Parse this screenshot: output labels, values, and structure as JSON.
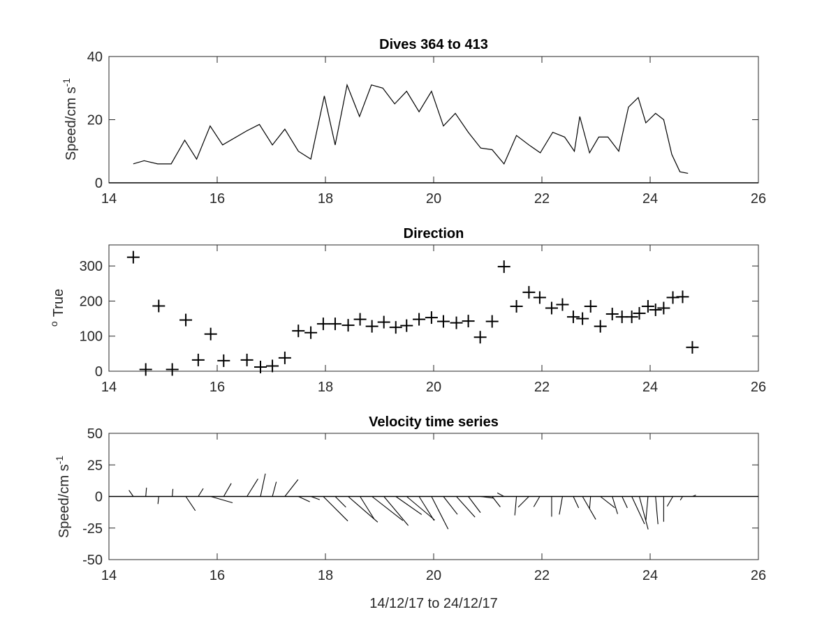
{
  "chart_data": [
    {
      "type": "line",
      "title": "Dives 364 to 413",
      "xlabel": "",
      "ylabel": "Speed/cm s",
      "ylabel_superscript": "-1",
      "xlim": [
        14,
        26
      ],
      "ylim": [
        0,
        40
      ],
      "xticks": [
        14,
        16,
        18,
        20,
        22,
        24,
        26
      ],
      "yticks": [
        0,
        20,
        40
      ],
      "grid": false,
      "series": [
        {
          "x": [
            14.45,
            14.65,
            14.9,
            15.15,
            15.4,
            15.62,
            15.87,
            16.1,
            16.55,
            16.78,
            17.02,
            17.25,
            17.5,
            17.73,
            17.98,
            18.18,
            18.4,
            18.63,
            18.85,
            19.06,
            19.28,
            19.5,
            19.73,
            19.96,
            20.18,
            20.4,
            20.64,
            20.87,
            21.08,
            21.3,
            21.53,
            21.76,
            21.97,
            22.2,
            22.42,
            22.6,
            22.7,
            22.88,
            23.05,
            23.22,
            23.42,
            23.6,
            23.78,
            23.92,
            24.1,
            24.25,
            24.4,
            24.55,
            24.7
          ],
          "y": [
            6,
            7,
            6,
            6,
            13.5,
            7.5,
            18,
            12,
            16.5,
            18.5,
            12,
            17,
            10,
            7.5,
            27.5,
            12,
            31,
            21,
            31,
            30,
            25,
            29,
            22.5,
            29,
            18,
            22,
            16,
            11,
            10.5,
            6,
            15,
            12,
            9.5,
            16,
            14.5,
            10,
            21,
            9.5,
            14.5,
            14.5,
            10,
            24,
            27,
            19,
            22,
            20,
            9,
            3.5,
            3
          ]
        }
      ]
    },
    {
      "type": "scatter",
      "title": "Direction",
      "xlabel": "",
      "ylabel": "True",
      "ylabel_superscript": "o",
      "xlim": [
        14,
        26
      ],
      "ylim": [
        0,
        360
      ],
      "xticks": [
        14,
        16,
        18,
        20,
        22,
        24,
        26
      ],
      "yticks": [
        0,
        100,
        200,
        300
      ],
      "grid": false,
      "marker": "+",
      "series": [
        {
          "x": [
            14.45,
            14.68,
            14.92,
            15.17,
            15.42,
            15.65,
            15.88,
            16.12,
            16.55,
            16.8,
            17.02,
            17.25,
            17.5,
            17.73,
            17.96,
            18.18,
            18.42,
            18.64,
            18.86,
            19.08,
            19.3,
            19.5,
            19.73,
            19.96,
            20.18,
            20.42,
            20.64,
            20.86,
            21.08,
            21.3,
            21.53,
            21.76,
            21.96,
            22.18,
            22.38,
            22.58,
            22.75,
            22.9,
            23.08,
            23.3,
            23.48,
            23.66,
            23.8,
            23.96,
            24.1,
            24.25,
            24.42,
            24.6,
            24.78
          ],
          "y": [
            325,
            5,
            186,
            5,
            146,
            32,
            106,
            30,
            32,
            12,
            15,
            38,
            115,
            110,
            135,
            135,
            131,
            148,
            128,
            140,
            125,
            130,
            148,
            153,
            142,
            138,
            143,
            97,
            142,
            298,
            185,
            225,
            210,
            180,
            190,
            155,
            150,
            185,
            128,
            163,
            155,
            155,
            165,
            185,
            175,
            180,
            210,
            212,
            68
          ]
        }
      ]
    },
    {
      "type": "line",
      "subtype": "stick-plot",
      "title": "Velocity time series",
      "xlabel": "14/12/17 to 24/12/17",
      "ylabel": "Speed/cm s",
      "ylabel_superscript": "-1",
      "xlim": [
        14,
        26
      ],
      "ylim": [
        -50,
        50
      ],
      "xticks": [
        14,
        16,
        18,
        20,
        22,
        24,
        26
      ],
      "yticks": [
        -50,
        -25,
        0,
        25,
        50
      ],
      "grid": false,
      "series": [
        {
          "x": [
            14.45,
            14.68,
            14.92,
            15.17,
            15.42,
            15.65,
            15.88,
            16.12,
            16.55,
            16.8,
            17.02,
            17.25,
            17.5,
            17.73,
            17.96,
            18.18,
            18.42,
            18.64,
            18.86,
            19.08,
            19.3,
            19.5,
            19.73,
            19.96,
            20.18,
            20.42,
            20.64,
            20.86,
            21.08,
            21.3,
            21.53,
            21.76,
            21.96,
            22.18,
            22.38,
            22.58,
            22.75,
            22.9,
            23.08,
            23.3,
            23.48,
            23.66,
            23.8,
            23.96,
            24.1,
            24.25,
            24.42,
            24.6,
            24.78
          ],
          "speed": [
            6,
            7,
            6,
            6,
            13.5,
            7.5,
            18,
            12,
            16.5,
            18.5,
            12,
            17,
            10,
            7.5,
            27.5,
            12,
            31,
            21,
            31,
            30,
            25,
            29,
            22.5,
            29,
            18,
            22,
            16,
            11,
            10.5,
            6,
            15,
            12,
            9.5,
            16,
            14.5,
            10,
            21,
            9.5,
            14.5,
            14.5,
            10,
            24,
            27,
            19,
            22,
            20,
            9,
            3.5,
            3
          ],
          "direction": [
            325,
            5,
            186,
            5,
            146,
            32,
            106,
            30,
            32,
            12,
            15,
            38,
            115,
            110,
            135,
            135,
            131,
            148,
            128,
            140,
            125,
            130,
            148,
            153,
            142,
            138,
            143,
            97,
            142,
            298,
            185,
            225,
            210,
            180,
            190,
            155,
            150,
            185,
            128,
            163,
            155,
            155,
            165,
            185,
            175,
            180,
            210,
            212,
            68
          ]
        }
      ]
    }
  ]
}
